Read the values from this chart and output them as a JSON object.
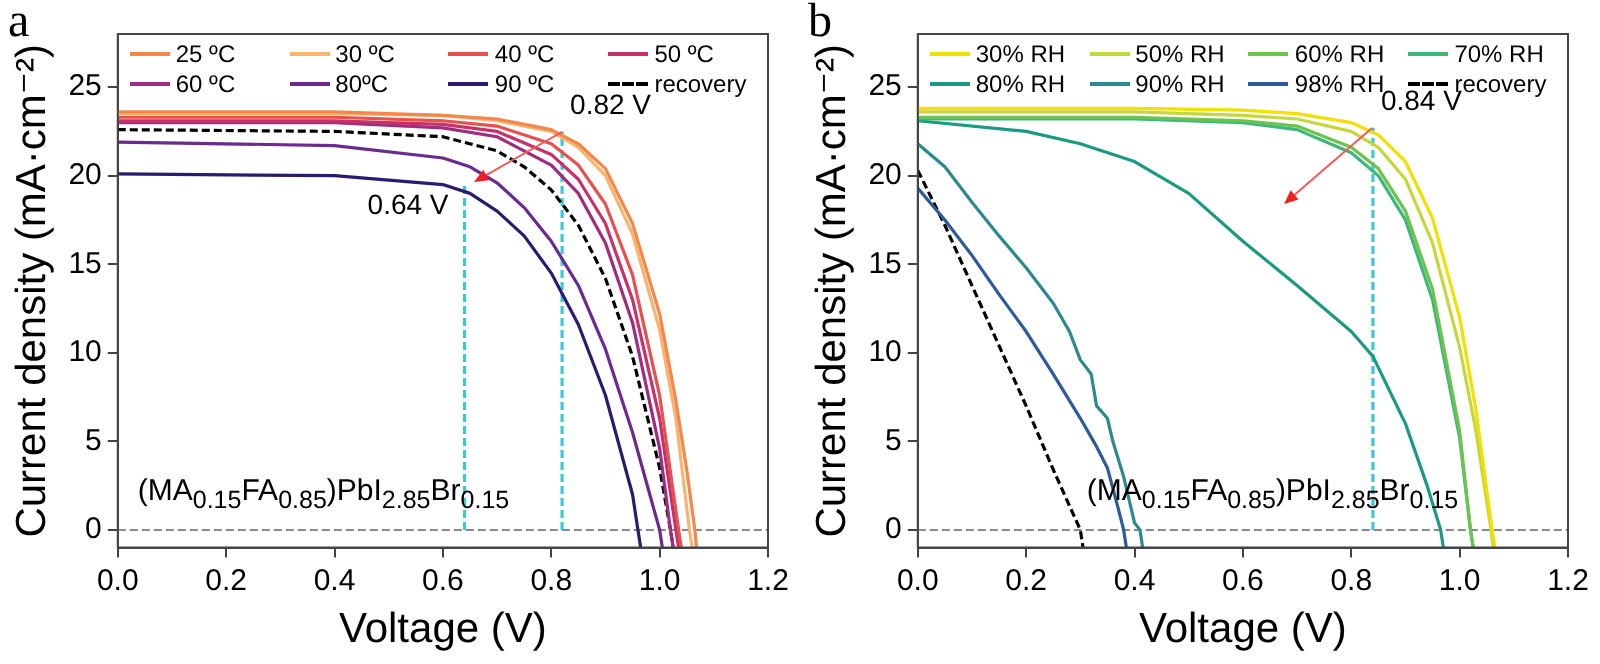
{
  "chart_data": [
    {
      "type": "line",
      "xlabel": "Voltage (V)",
      "ylabel": "Current density (mA·cm⁻²)",
      "legend": "top",
      "xlim": [
        0,
        1.2
      ],
      "ylim": [
        -1,
        28
      ],
      "xticks": [
        {
          "value": 0,
          "label": "0.0"
        },
        {
          "value": 0.2,
          "label": "0.2"
        },
        {
          "value": 0.4,
          "label": "0.4"
        },
        {
          "value": 0.6,
          "label": "0.6"
        },
        {
          "value": 0.8,
          "label": "0.8"
        },
        {
          "value": 1,
          "label": "1.0"
        },
        {
          "value": 1.2,
          "label": "1.2"
        }
      ],
      "yticks": [
        0,
        5,
        10,
        15,
        20,
        25
      ],
      "ref_lines": [
        {
          "axis": "y",
          "value": 0,
          "color": "#888888",
          "line_style": "dashed"
        }
      ],
      "annotations": [
        "a",
        "(MA$_{0.15}$FA$_{0.85}$)PbI$_{2.85}$Br$_{0.15}$",
        {
          "text": "0.82 V",
          "x": 0.82,
          "y": 22.5
        },
        {
          "text": "0.64 V",
          "x": 0.64,
          "y": 19.5
        }
      ],
      "series": [
        {
          "name": "25 ºC",
          "color": "#f5874a",
          "x": [
            0,
            0.4,
            0.6,
            0.7,
            0.8,
            0.85,
            0.9,
            0.95,
            1.0,
            1.03,
            1.05,
            1.065,
            1.068
          ],
          "values": [
            23.6,
            23.6,
            23.4,
            23.2,
            22.6,
            21.8,
            20.4,
            17.3,
            12.2,
            7.3,
            3.4,
            0,
            -1
          ]
        },
        {
          "name": "30 ºC",
          "color": "#f9b46e",
          "x": [
            0,
            0.4,
            0.6,
            0.7,
            0.8,
            0.85,
            0.9,
            0.95,
            1.0,
            1.03,
            1.055,
            1.06
          ],
          "values": [
            23.5,
            23.5,
            23.4,
            23.1,
            22.5,
            21.6,
            20.0,
            16.7,
            11.3,
            6.3,
            0,
            -1
          ]
        },
        {
          "name": "40 ºC",
          "color": "#e8504e",
          "x": [
            0,
            0.4,
            0.6,
            0.7,
            0.8,
            0.85,
            0.9,
            0.95,
            1.0,
            1.035,
            1.04
          ],
          "values": [
            23.3,
            23.3,
            23.1,
            22.8,
            21.8,
            20.6,
            18.4,
            14.4,
            7.6,
            0,
            -1
          ]
        },
        {
          "name": "50 ºC",
          "color": "#c8306a",
          "x": [
            0,
            0.4,
            0.6,
            0.7,
            0.8,
            0.85,
            0.9,
            0.95,
            1.0,
            1.03,
            1.035
          ],
          "values": [
            23.1,
            23.1,
            22.9,
            22.5,
            21.2,
            19.8,
            17.3,
            13.0,
            6.3,
            0,
            -1
          ]
        },
        {
          "name": "60 ºC",
          "color": "#a02c82",
          "x": [
            0,
            0.4,
            0.6,
            0.7,
            0.8,
            0.85,
            0.9,
            0.95,
            1.0,
            1.02,
            1.025
          ],
          "values": [
            23.0,
            23.0,
            22.7,
            22.2,
            20.6,
            19.0,
            16.2,
            11.7,
            4.6,
            0,
            -1
          ]
        },
        {
          "name": "80ºC",
          "color": "#6a2a90",
          "x": [
            0,
            0.4,
            0.6,
            0.65,
            0.7,
            0.75,
            0.8,
            0.85,
            0.9,
            0.95,
            1.0,
            1.005
          ],
          "values": [
            21.9,
            21.7,
            21.0,
            20.5,
            19.6,
            18.2,
            16.3,
            13.8,
            10.2,
            5.5,
            0,
            -1
          ]
        },
        {
          "name": "90 ºC",
          "color": "#2c1a70",
          "x": [
            0,
            0.4,
            0.6,
            0.65,
            0.7,
            0.75,
            0.8,
            0.85,
            0.9,
            0.95,
            0.96,
            0.965
          ],
          "values": [
            20.1,
            20.0,
            19.5,
            19.0,
            18.0,
            16.6,
            14.5,
            11.6,
            7.6,
            2.0,
            0,
            -1
          ]
        },
        {
          "name": "recovery",
          "color": "#000000",
          "line_style": "dashed",
          "x": [
            0,
            0.4,
            0.6,
            0.7,
            0.75,
            0.8,
            0.85,
            0.9,
            0.95,
            1.0,
            1.02,
            1.025
          ],
          "values": [
            22.6,
            22.5,
            22.2,
            21.4,
            20.5,
            19.2,
            17.2,
            14.2,
            9.8,
            3.5,
            0,
            -1
          ]
        },
        {
          "color": "#3cc8d8",
          "line_style": "dashed",
          "x": [
            0.64,
            0.64
          ],
          "values": [
            0,
            19.5
          ]
        },
        {
          "color": "#3cc8d8",
          "line_style": "dashed",
          "x": [
            0.82,
            0.82
          ],
          "values": [
            0,
            22.5
          ]
        }
      ]
    },
    {
      "type": "line",
      "xlabel": "Voltage (V)",
      "ylabel": "Current density (mA·cm⁻²)",
      "legend": "top",
      "xlim": [
        0,
        1.2
      ],
      "ylim": [
        -1,
        28
      ],
      "xticks": [
        {
          "value": 0,
          "label": "0.0"
        },
        {
          "value": 0.2,
          "label": "0.2"
        },
        {
          "value": 0.4,
          "label": "0.4"
        },
        {
          "value": 0.6,
          "label": "0.6"
        },
        {
          "value": 0.8,
          "label": "0.8"
        },
        {
          "value": 1,
          "label": "1.0"
        },
        {
          "value": 1.2,
          "label": "1.2"
        }
      ],
      "yticks": [
        0,
        5,
        10,
        15,
        20,
        25
      ],
      "ref_lines": [
        {
          "axis": "y",
          "value": 0,
          "color": "#888888",
          "line_style": "dashed"
        }
      ],
      "annotations": [
        "b",
        "(MA$_{0.15}$FA$_{0.85}$)PbI$_{2.85}$Br$_{0.15}$",
        {
          "text": "0.84 V",
          "x": 0.84,
          "y": 22.7
        }
      ],
      "series": [
        {
          "name": "30% RH",
          "color": "#f2e000",
          "x": [
            0,
            0.4,
            0.6,
            0.7,
            0.8,
            0.85,
            0.9,
            0.95,
            1.0,
            1.03,
            1.06,
            1.065
          ],
          "values": [
            23.8,
            23.8,
            23.7,
            23.5,
            23.0,
            22.3,
            20.8,
            17.6,
            12.0,
            6.8,
            0,
            -1
          ]
        },
        {
          "name": "50% RH",
          "color": "#c4d83c",
          "x": [
            0,
            0.4,
            0.6,
            0.7,
            0.8,
            0.85,
            0.9,
            0.95,
            1.0,
            1.03,
            1.058,
            1.062
          ],
          "values": [
            23.6,
            23.6,
            23.4,
            23.2,
            22.5,
            21.6,
            19.8,
            16.2,
            10.3,
            5.6,
            0,
            -1
          ]
        },
        {
          "name": "60% RH",
          "color": "#6cc44c",
          "x": [
            0,
            0.4,
            0.6,
            0.7,
            0.8,
            0.85,
            0.9,
            0.95,
            1.0,
            1.02,
            1.025
          ],
          "values": [
            23.3,
            23.3,
            23.1,
            22.8,
            21.6,
            20.4,
            18.0,
            13.6,
            5.6,
            0,
            -1
          ]
        },
        {
          "name": "70% RH",
          "color": "#3cb87a",
          "x": [
            0,
            0.4,
            0.6,
            0.7,
            0.8,
            0.85,
            0.9,
            0.95,
            1.0,
            1.02,
            1.025
          ],
          "values": [
            23.2,
            23.2,
            23.0,
            22.6,
            21.3,
            20.0,
            17.5,
            13.0,
            5.2,
            0,
            -1
          ]
        },
        {
          "name": "80% RH",
          "color": "#1a9a80",
          "x": [
            0,
            0.2,
            0.3,
            0.4,
            0.5,
            0.6,
            0.7,
            0.8,
            0.84,
            0.9,
            0.94,
            0.965,
            0.97
          ],
          "values": [
            23.1,
            22.5,
            21.8,
            20.8,
            19.0,
            16.3,
            13.8,
            11.2,
            9.8,
            6.0,
            2.5,
            0,
            -1
          ]
        },
        {
          "name": "90% RH",
          "color": "#2a8a90",
          "x": [
            0,
            0.05,
            0.1,
            0.15,
            0.2,
            0.25,
            0.28,
            0.3,
            0.32,
            0.33,
            0.35,
            0.36,
            0.38,
            0.4,
            0.41,
            0.415
          ],
          "values": [
            21.8,
            20.5,
            18.5,
            16.6,
            14.8,
            12.8,
            11.2,
            9.6,
            8.8,
            7.0,
            6.3,
            5.0,
            3.0,
            0.4,
            0,
            -1
          ]
        },
        {
          "name": "98% RH",
          "color": "#2c5a9a",
          "x": [
            0,
            0.05,
            0.1,
            0.15,
            0.2,
            0.25,
            0.3,
            0.33,
            0.35,
            0.37,
            0.38,
            0.385
          ],
          "values": [
            19.3,
            17.5,
            15.5,
            13.3,
            11.2,
            8.8,
            6.3,
            4.7,
            3.5,
            1.2,
            0,
            -1
          ]
        },
        {
          "name": "recovery",
          "color": "#000000",
          "line_style": "dashed",
          "x": [
            0,
            0.05,
            0.1,
            0.15,
            0.2,
            0.25,
            0.3,
            0.305
          ],
          "values": [
            20.3,
            17.2,
            13.8,
            10.4,
            7.0,
            3.4,
            0,
            -1
          ]
        },
        {
          "color": "#3cc8d8",
          "line_style": "dashed",
          "x": [
            0.84,
            0.84
          ],
          "values": [
            0,
            22.7
          ]
        }
      ]
    }
  ]
}
